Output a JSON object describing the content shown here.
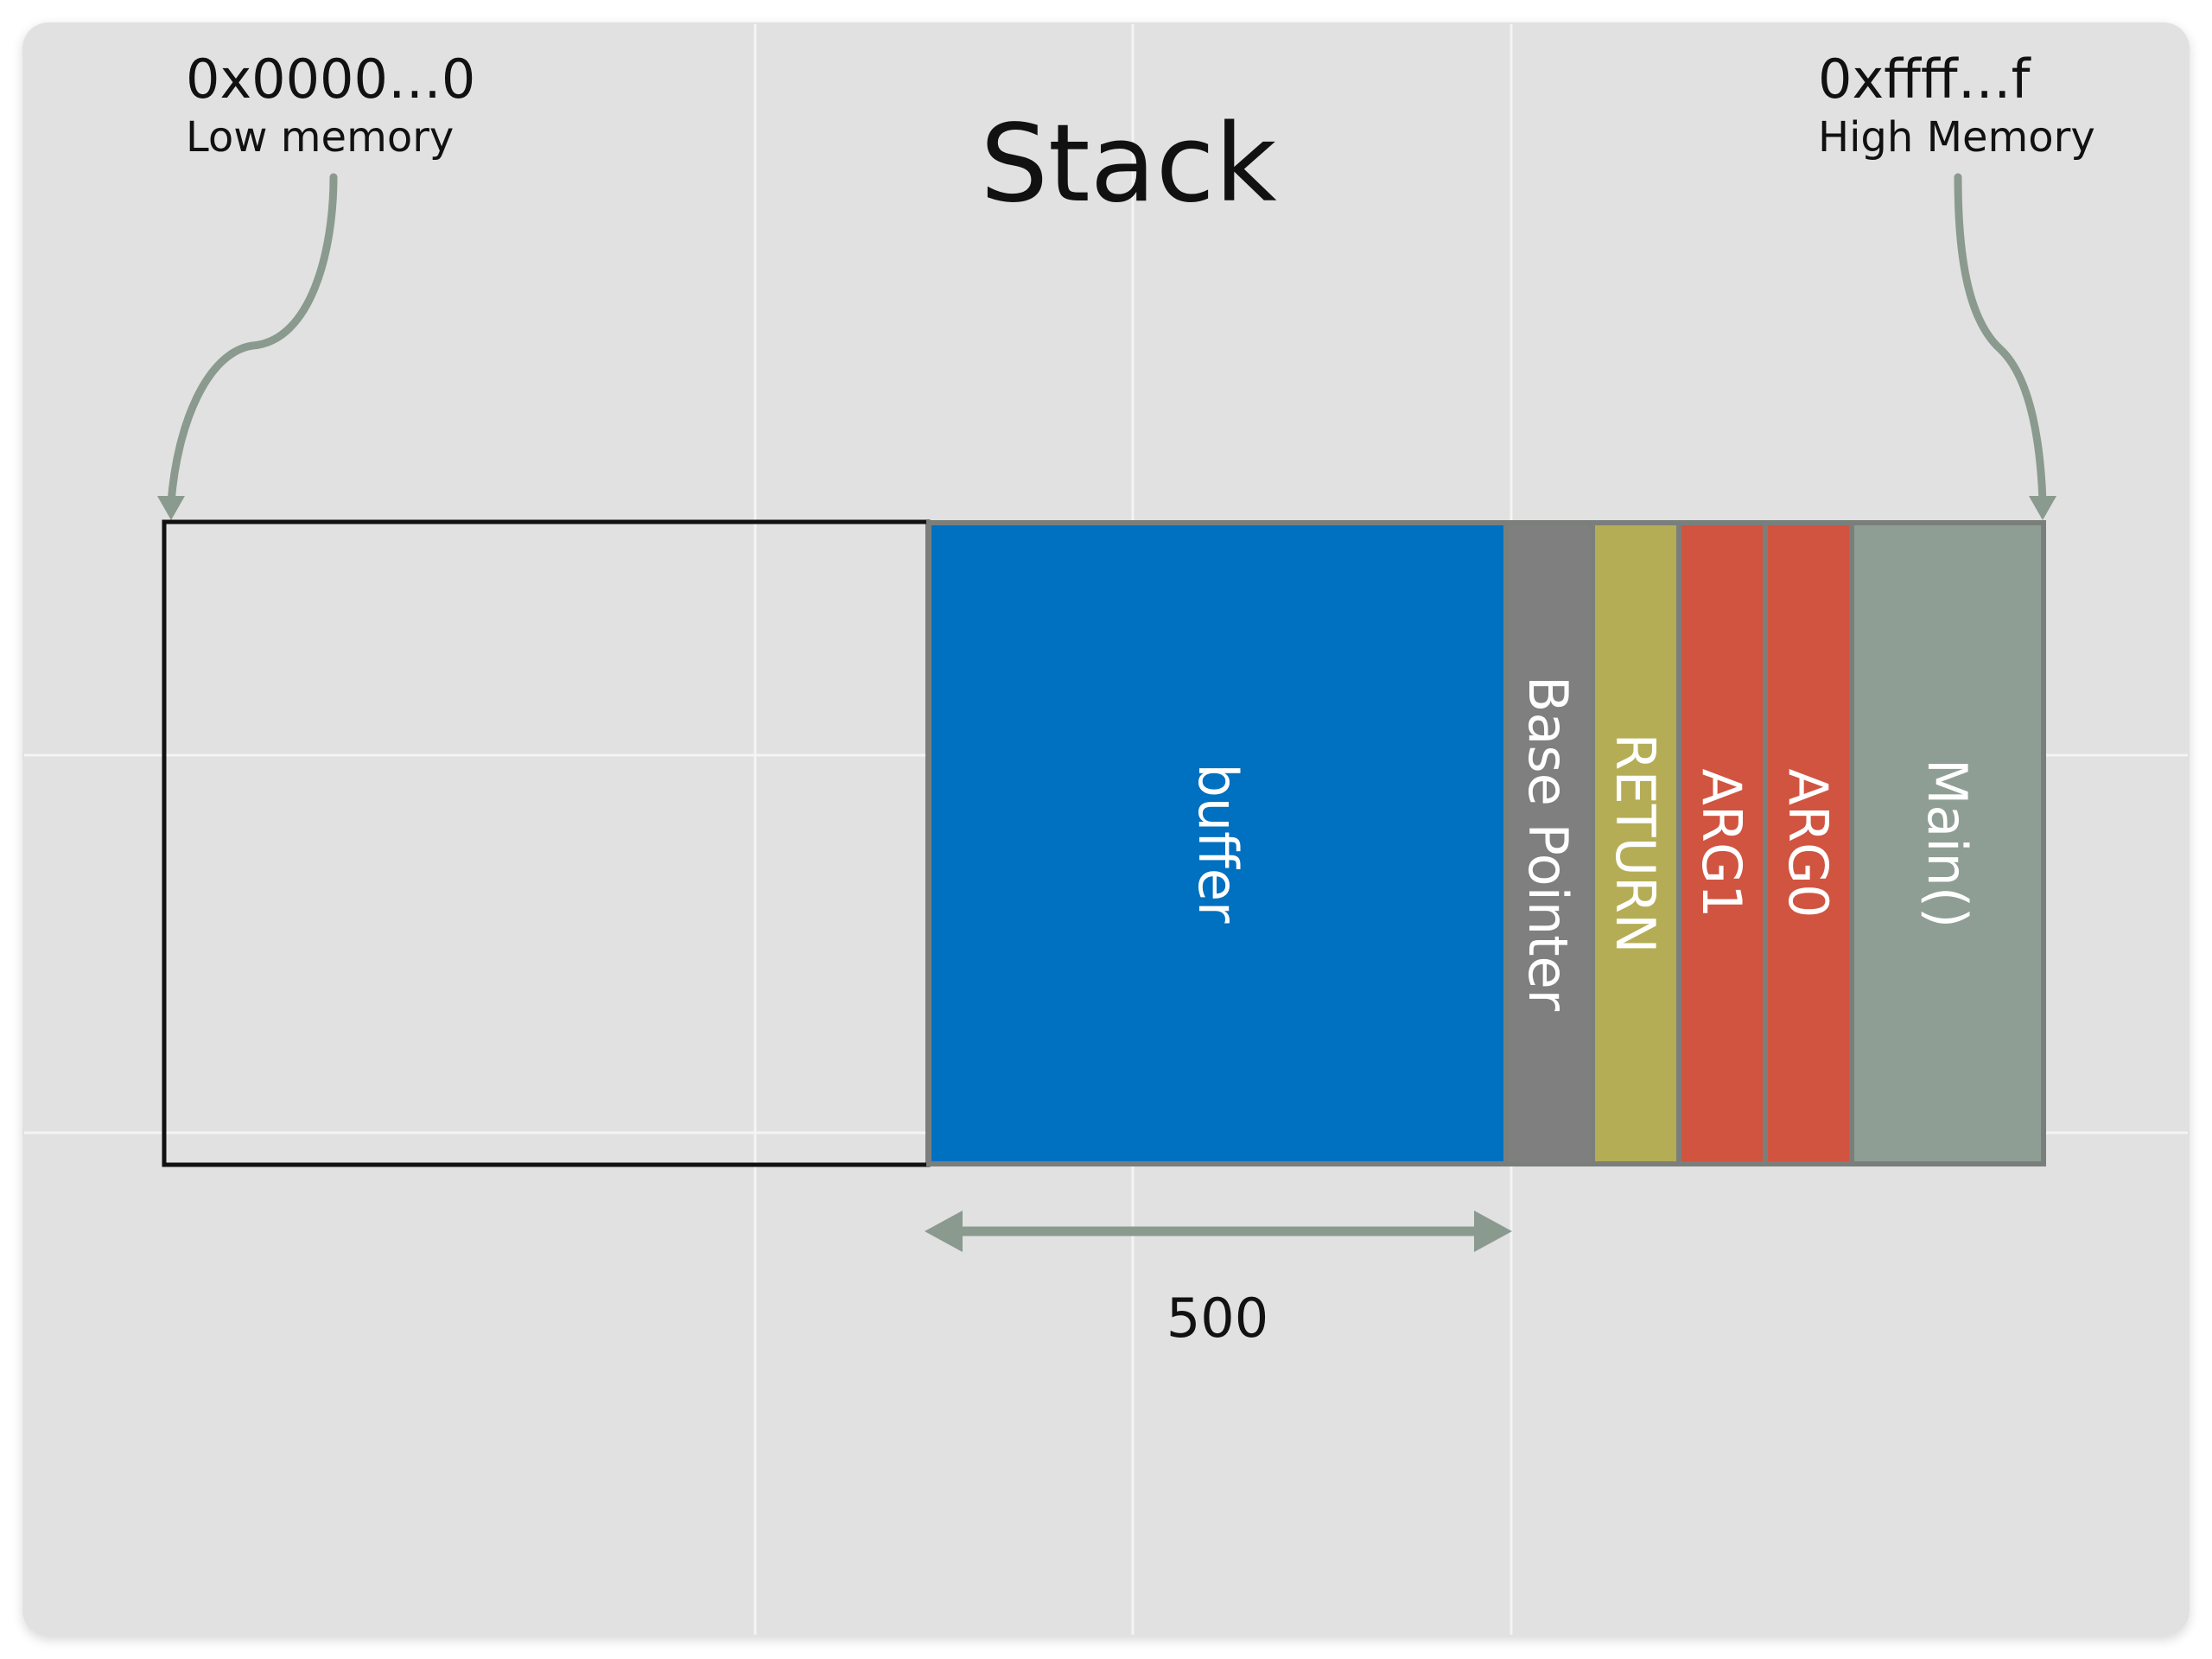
{
  "title": "Stack",
  "low_address": {
    "address": "0x0000…0",
    "label": "Low memory"
  },
  "high_address": {
    "address": "0xffff…f",
    "label": "High Memory"
  },
  "segments": [
    {
      "id": "buffer",
      "label": "buffer",
      "color": "#0070c0"
    },
    {
      "id": "base-pointer",
      "label": "Base Pointer",
      "color": "#7f7f7f"
    },
    {
      "id": "return",
      "label": "RETURN",
      "color": "#b5ad55"
    },
    {
      "id": "arg1",
      "label": "ARG1",
      "color": "#d05440"
    },
    {
      "id": "arg0",
      "label": "ARG0",
      "color": "#d05440"
    },
    {
      "id": "main",
      "label": "Main()",
      "color": "#8f9e94"
    }
  ],
  "buffer_size": {
    "label": "500"
  },
  "colors": {
    "background": "#e1e1e1",
    "grid": "#f4f4f4",
    "arrow": "#8a9a8e",
    "stack_outline": "#111111",
    "segment_label": "#ffffff",
    "text": "#111111"
  }
}
